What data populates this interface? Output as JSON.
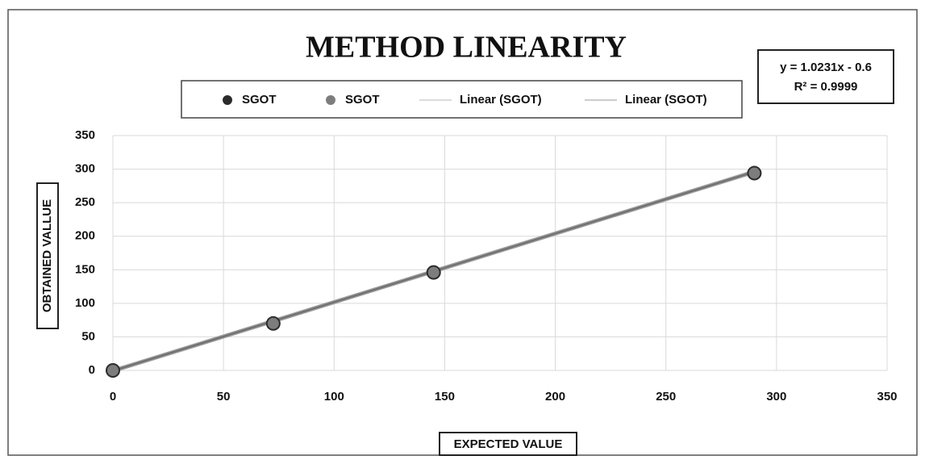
{
  "chart_data": {
    "type": "scatter",
    "title": "METHOD LINEARITY",
    "x_label": "EXPECTED VALUE",
    "y_label": "OBTAINED VALLUE",
    "series": [
      {
        "name": "SGOT",
        "color": "#2b2b2b",
        "x": [
          0,
          72.5,
          145,
          290
        ],
        "values": [
          0,
          70,
          146,
          294
        ]
      },
      {
        "name": "SGOT",
        "color": "#7d7d7d",
        "x": [
          0,
          72.5,
          145,
          290
        ],
        "values": [
          0,
          70,
          146,
          294
        ]
      }
    ],
    "trendlines": [
      {
        "name": "Linear (SGOT)",
        "color": "#9a9a9a",
        "slope": 1.0231,
        "intercept": -0.6
      },
      {
        "name": "Linear (SGOT)",
        "color": "#6e6e6e",
        "slope": 1.0231,
        "intercept": -0.6
      }
    ],
    "annotation": [
      "y = 1.0231x - 0.6",
      "R² = 0.9999"
    ],
    "xlim": [
      0,
      350
    ],
    "xticks": [
      0,
      50,
      100,
      150,
      200,
      250,
      300,
      350
    ],
    "ylim": [
      0,
      350
    ],
    "yticks": [
      0,
      50,
      100,
      150,
      200,
      250,
      300,
      350
    ],
    "grid": true
  }
}
